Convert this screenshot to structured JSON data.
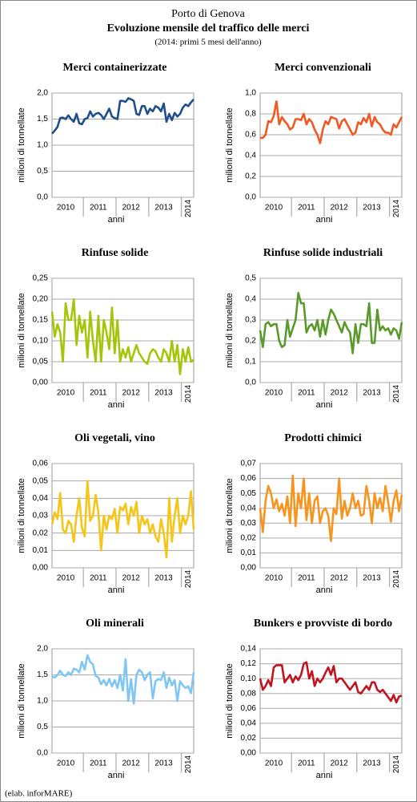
{
  "header": {
    "title": "Porto di Genova",
    "subtitle": "Evoluzione mensile del traffico delle merci",
    "note": "(2014: primi 5 mesi dell'anno)"
  },
  "footer": "(elab. inforMARE)",
  "chart_data": [
    {
      "type": "line",
      "title": "Merci containerizzate",
      "ylabel": "milioni di tonnellate",
      "xlabel": "anni",
      "color": "#1f4e8c",
      "categories": [
        null,
        null,
        null,
        null,
        null,
        "2010",
        null,
        null,
        null,
        null,
        null,
        null,
        null,
        null,
        null,
        null,
        null,
        "2011",
        null,
        null,
        null,
        null,
        null,
        null,
        null,
        null,
        null,
        null,
        null,
        "2012",
        null,
        null,
        null,
        null,
        null,
        null,
        null,
        null,
        null,
        null,
        null,
        "2013",
        null,
        null,
        null,
        null,
        null,
        null,
        null,
        null,
        "2014",
        null,
        null
      ],
      "values": [
        1.22,
        1.28,
        1.35,
        1.52,
        1.53,
        1.5,
        1.57,
        1.5,
        1.45,
        1.6,
        1.42,
        1.4,
        1.5,
        1.52,
        1.65,
        1.55,
        1.6,
        1.62,
        1.58,
        1.5,
        1.6,
        1.7,
        1.55,
        1.52,
        1.5,
        1.85,
        1.85,
        1.83,
        1.9,
        1.88,
        1.85,
        1.6,
        1.58,
        1.75,
        1.75,
        1.6,
        1.7,
        1.65,
        1.75,
        1.72,
        1.65,
        1.8,
        1.45,
        1.6,
        1.48,
        1.62,
        1.55,
        1.6,
        1.72,
        1.78,
        1.75,
        1.82,
        1.88
      ],
      "ylim": [
        0,
        2
      ],
      "yticks": [
        {
          "value": 0,
          "label": "0,0"
        },
        {
          "value": 0.5,
          "label": "0,5"
        },
        {
          "value": 1,
          "label": "1,0"
        },
        {
          "value": 1.5,
          "label": "1,5"
        },
        {
          "value": 2,
          "label": "2,0"
        }
      ],
      "grid": true
    },
    {
      "type": "line",
      "title": "Merci convenzionali",
      "ylabel": "milioni di tonnellate",
      "xlabel": "anni",
      "color": "#f05a22",
      "categories": [
        null,
        null,
        null,
        null,
        null,
        "2010",
        null,
        null,
        null,
        null,
        null,
        null,
        null,
        null,
        null,
        null,
        null,
        "2011",
        null,
        null,
        null,
        null,
        null,
        null,
        null,
        null,
        null,
        null,
        null,
        "2012",
        null,
        null,
        null,
        null,
        null,
        null,
        null,
        null,
        null,
        null,
        null,
        "2013",
        null,
        null,
        null,
        null,
        null,
        null,
        null,
        null,
        "2014",
        null,
        null
      ],
      "values": [
        0.57,
        0.57,
        0.6,
        0.73,
        0.72,
        0.78,
        0.92,
        0.7,
        0.77,
        0.73,
        0.7,
        0.65,
        0.67,
        0.75,
        0.75,
        0.74,
        0.8,
        0.7,
        0.75,
        0.72,
        0.65,
        0.6,
        0.52,
        0.65,
        0.73,
        0.7,
        0.77,
        0.76,
        0.75,
        0.66,
        0.73,
        0.75,
        0.7,
        0.65,
        0.6,
        0.62,
        0.72,
        0.7,
        0.76,
        0.72,
        0.8,
        0.68,
        0.77,
        0.72,
        0.7,
        0.65,
        0.62,
        0.62,
        0.6,
        0.7,
        0.67,
        0.72,
        0.77
      ],
      "ylim": [
        0,
        1
      ],
      "yticks": [
        {
          "value": 0,
          "label": "0,0"
        },
        {
          "value": 0.2,
          "label": "0,2"
        },
        {
          "value": 0.4,
          "label": "0,4"
        },
        {
          "value": 0.6,
          "label": "0,6"
        },
        {
          "value": 0.8,
          "label": "0,8"
        },
        {
          "value": 1,
          "label": "1,0"
        }
      ],
      "grid": true
    },
    {
      "type": "line",
      "title": "Rinfuse solide",
      "ylabel": "milioni di tonnellate",
      "xlabel": "anni",
      "color": "#a6c40a",
      "categories": [
        null,
        null,
        null,
        null,
        null,
        "2010",
        null,
        null,
        null,
        null,
        null,
        null,
        null,
        null,
        null,
        null,
        null,
        "2011",
        null,
        null,
        null,
        null,
        null,
        null,
        null,
        null,
        null,
        null,
        null,
        "2012",
        null,
        null,
        null,
        null,
        null,
        null,
        null,
        null,
        null,
        null,
        null,
        "2013",
        null,
        null,
        null,
        null,
        null,
        null,
        null,
        null,
        "2014",
        null,
        null
      ],
      "values": [
        0.17,
        0.11,
        0.14,
        0.12,
        0.05,
        0.19,
        0.15,
        0.15,
        0.2,
        0.09,
        0.16,
        0.12,
        0.15,
        0.06,
        0.17,
        0.1,
        0.05,
        0.16,
        0.05,
        0.15,
        0.12,
        0.08,
        0.18,
        0.07,
        0.15,
        0.05,
        0.08,
        0.06,
        0.085,
        0.05,
        0.07,
        0.09,
        0.07,
        0.06,
        0.05,
        0.045,
        0.07,
        0.08,
        0.075,
        0.06,
        0.05,
        0.08,
        0.07,
        0.05,
        0.1,
        0.05,
        0.09,
        0.02,
        0.08,
        0.05,
        0.085,
        0.05,
        0.055
      ],
      "ylim": [
        0,
        0.25
      ],
      "yticks": [
        {
          "value": 0,
          "label": "0,00"
        },
        {
          "value": 0.05,
          "label": "0,05"
        },
        {
          "value": 0.1,
          "label": "0,10"
        },
        {
          "value": 0.15,
          "label": "0,15"
        },
        {
          "value": 0.2,
          "label": "0,20"
        },
        {
          "value": 0.25,
          "label": "0,25"
        }
      ],
      "grid": true
    },
    {
      "type": "line",
      "title": "Rinfuse solide industriali",
      "ylabel": "milioni di tonnellate",
      "xlabel": "anni",
      "color": "#5a9a2a",
      "categories": [
        null,
        null,
        null,
        null,
        null,
        "2010",
        null,
        null,
        null,
        null,
        null,
        null,
        null,
        null,
        null,
        null,
        null,
        "2011",
        null,
        null,
        null,
        null,
        null,
        null,
        null,
        null,
        null,
        null,
        null,
        "2012",
        null,
        null,
        null,
        null,
        null,
        null,
        null,
        null,
        null,
        null,
        null,
        "2013",
        null,
        null,
        null,
        null,
        null,
        null,
        null,
        null,
        "2014",
        null,
        null
      ],
      "values": [
        0.25,
        0.17,
        0.28,
        0.29,
        0.27,
        0.28,
        0.28,
        0.2,
        0.17,
        0.18,
        0.3,
        0.22,
        0.26,
        0.3,
        0.43,
        0.38,
        0.38,
        0.24,
        0.27,
        0.28,
        0.25,
        0.3,
        0.22,
        0.3,
        0.23,
        0.3,
        0.35,
        0.33,
        0.3,
        0.27,
        0.24,
        0.29,
        0.26,
        0.24,
        0.14,
        0.28,
        0.19,
        0.28,
        0.28,
        0.27,
        0.38,
        0.19,
        0.19,
        0.35,
        0.25,
        0.27,
        0.25,
        0.26,
        0.23,
        0.26,
        0.25,
        0.21,
        0.29
      ],
      "ylim": [
        0,
        0.5
      ],
      "yticks": [
        {
          "value": 0,
          "label": "0,0"
        },
        {
          "value": 0.1,
          "label": "0,1"
        },
        {
          "value": 0.2,
          "label": "0,2"
        },
        {
          "value": 0.3,
          "label": "0,3"
        },
        {
          "value": 0.4,
          "label": "0,4"
        },
        {
          "value": 0.5,
          "label": "0,5"
        }
      ],
      "grid": true
    },
    {
      "type": "line",
      "title": "Oli vegetali, vino",
      "ylabel": "milioni di tonnellate",
      "xlabel": "anni",
      "color": "#f5c518",
      "categories": [
        null,
        null,
        null,
        null,
        null,
        "2010",
        null,
        null,
        null,
        null,
        null,
        null,
        null,
        null,
        null,
        null,
        null,
        "2011",
        null,
        null,
        null,
        null,
        null,
        null,
        null,
        null,
        null,
        null,
        null,
        "2012",
        null,
        null,
        null,
        null,
        null,
        null,
        null,
        null,
        null,
        null,
        null,
        "2013",
        null,
        null,
        null,
        null,
        null,
        null,
        null,
        null,
        "2014",
        null,
        null
      ],
      "values": [
        0.025,
        0.032,
        0.028,
        0.043,
        0.022,
        0.02,
        0.027,
        0.025,
        0.015,
        0.03,
        0.04,
        0.023,
        0.018,
        0.05,
        0.027,
        0.03,
        0.042,
        0.032,
        0.01,
        0.03,
        0.022,
        0.03,
        0.028,
        0.034,
        0.02,
        0.035,
        0.033,
        0.037,
        0.025,
        0.035,
        0.03,
        0.038,
        0.02,
        0.03,
        0.025,
        0.028,
        0.02,
        0.025,
        0.018,
        0.015,
        0.028,
        0.02,
        0.006,
        0.04,
        0.015,
        0.03,
        0.04,
        0.02,
        0.03,
        0.025,
        0.03,
        0.044,
        0.022
      ],
      "ylim": [
        0,
        0.06
      ],
      "yticks": [
        {
          "value": 0,
          "label": "0,00"
        },
        {
          "value": 0.01,
          "label": "0,01"
        },
        {
          "value": 0.02,
          "label": "0,02"
        },
        {
          "value": 0.03,
          "label": "0,03"
        },
        {
          "value": 0.04,
          "label": "0,04"
        },
        {
          "value": 0.05,
          "label": "0,05"
        },
        {
          "value": 0.06,
          "label": "0,06"
        }
      ],
      "grid": true
    },
    {
      "type": "line",
      "title": "Prodotti chimici",
      "ylabel": "milioni di tonnellate",
      "xlabel": "anni",
      "color": "#f7941d",
      "categories": [
        null,
        null,
        null,
        null,
        null,
        "2010",
        null,
        null,
        null,
        null,
        null,
        null,
        null,
        null,
        null,
        null,
        null,
        "2011",
        null,
        null,
        null,
        null,
        null,
        null,
        null,
        null,
        null,
        null,
        null,
        "2012",
        null,
        null,
        null,
        null,
        null,
        null,
        null,
        null,
        null,
        null,
        null,
        "2013",
        null,
        null,
        null,
        null,
        null,
        null,
        null,
        null,
        "2014",
        null,
        null
      ],
      "values": [
        0.04,
        0.024,
        0.045,
        0.055,
        0.05,
        0.04,
        0.046,
        0.038,
        0.043,
        0.035,
        0.048,
        0.03,
        0.062,
        0.028,
        0.05,
        0.04,
        0.06,
        0.032,
        0.05,
        0.03,
        0.045,
        0.048,
        0.03,
        0.038,
        0.04,
        0.035,
        0.018,
        0.04,
        0.036,
        0.06,
        0.033,
        0.045,
        0.035,
        0.04,
        0.05,
        0.04,
        0.045,
        0.035,
        0.036,
        0.055,
        0.045,
        0.03,
        0.05,
        0.04,
        0.047,
        0.038,
        0.055,
        0.044,
        0.031,
        0.045,
        0.052,
        0.038,
        0.049
      ],
      "ylim": [
        0,
        0.07
      ],
      "yticks": [
        {
          "value": 0,
          "label": "0,00"
        },
        {
          "value": 0.01,
          "label": "0,01"
        },
        {
          "value": 0.02,
          "label": "0,02"
        },
        {
          "value": 0.03,
          "label": "0,03"
        },
        {
          "value": 0.04,
          "label": "0,04"
        },
        {
          "value": 0.05,
          "label": "0,05"
        },
        {
          "value": 0.06,
          "label": "0,06"
        },
        {
          "value": 0.07,
          "label": "0,07"
        }
      ],
      "grid": true
    },
    {
      "type": "line",
      "title": "Oli minerali",
      "ylabel": "milioni di tonnellate",
      "xlabel": "anni",
      "color": "#7fc6f2",
      "categories": [
        null,
        null,
        null,
        null,
        null,
        "2010",
        null,
        null,
        null,
        null,
        null,
        null,
        null,
        null,
        null,
        null,
        null,
        "2011",
        null,
        null,
        null,
        null,
        null,
        null,
        null,
        null,
        null,
        null,
        null,
        "2012",
        null,
        null,
        null,
        null,
        null,
        null,
        null,
        null,
        null,
        null,
        null,
        "2013",
        null,
        null,
        null,
        null,
        null,
        null,
        null,
        null,
        "2014",
        null,
        null
      ],
      "values": [
        1.47,
        1.45,
        1.5,
        1.58,
        1.5,
        1.48,
        1.55,
        1.5,
        1.62,
        1.6,
        1.55,
        1.75,
        1.6,
        1.88,
        1.75,
        1.7,
        1.48,
        1.45,
        1.32,
        1.4,
        1.3,
        1.42,
        1.28,
        1.4,
        1.25,
        1.5,
        1.2,
        1.8,
        1.0,
        1.42,
        0.95,
        1.5,
        1.6,
        1.55,
        1.4,
        1.5,
        1.55,
        1.05,
        1.38,
        1.42,
        1.4,
        1.55,
        1.25,
        1.45,
        1.3,
        1.4,
        1.0,
        1.38,
        1.3,
        1.25,
        1.28,
        1.15,
        1.55
      ],
      "ylim": [
        0,
        2
      ],
      "yticks": [
        {
          "value": 0,
          "label": "0,0"
        },
        {
          "value": 0.5,
          "label": "0,5"
        },
        {
          "value": 1,
          "label": "1,0"
        },
        {
          "value": 1.5,
          "label": "1,5"
        },
        {
          "value": 2,
          "label": "2,0"
        }
      ],
      "grid": true
    },
    {
      "type": "line",
      "title": "Bunkers e provviste di bordo",
      "ylabel": "milioni di tonnellate",
      "xlabel": "anni",
      "color": "#c0141e",
      "categories": [
        null,
        null,
        null,
        null,
        null,
        "2010",
        null,
        null,
        null,
        null,
        null,
        null,
        null,
        null,
        null,
        null,
        null,
        "2011",
        null,
        null,
        null,
        null,
        null,
        null,
        null,
        null,
        null,
        null,
        null,
        "2012",
        null,
        null,
        null,
        null,
        null,
        null,
        null,
        null,
        null,
        null,
        null,
        "2013",
        null,
        null,
        null,
        null,
        null,
        null,
        null,
        null,
        "2014",
        null,
        null
      ],
      "values": [
        0.1,
        0.085,
        0.09,
        0.098,
        0.09,
        0.115,
        0.118,
        0.118,
        0.118,
        0.095,
        0.1,
        0.105,
        0.095,
        0.103,
        0.098,
        0.105,
        0.12,
        0.122,
        0.1,
        0.11,
        0.09,
        0.1,
        0.095,
        0.1,
        0.108,
        0.115,
        0.105,
        0.117,
        0.095,
        0.1,
        0.1,
        0.095,
        0.09,
        0.085,
        0.09,
        0.095,
        0.082,
        0.08,
        0.085,
        0.09,
        0.085,
        0.095,
        0.095,
        0.085,
        0.082,
        0.085,
        0.08,
        0.075,
        0.07,
        0.078,
        0.068,
        0.076,
        0.077
      ],
      "ylim": [
        0,
        0.14
      ],
      "yticks": [
        {
          "value": 0,
          "label": "0,00"
        },
        {
          "value": 0.02,
          "label": "0,02"
        },
        {
          "value": 0.04,
          "label": "0,04"
        },
        {
          "value": 0.06,
          "label": "0,06"
        },
        {
          "value": 0.08,
          "label": "0,08"
        },
        {
          "value": 0.1,
          "label": "0,10"
        },
        {
          "value": 0.12,
          "label": "0,12"
        },
        {
          "value": 0.14,
          "label": "0,14"
        }
      ],
      "grid": true
    }
  ]
}
